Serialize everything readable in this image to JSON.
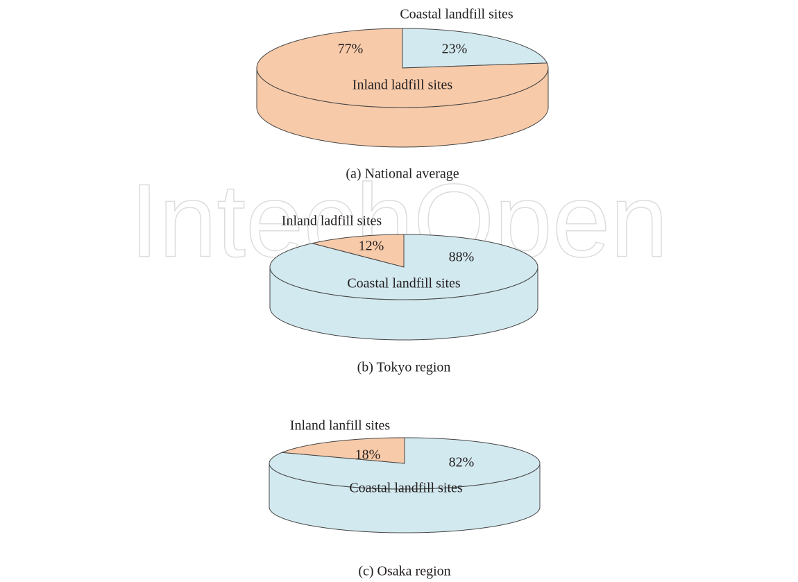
{
  "watermark": "IntechOpen",
  "chart_data": [
    {
      "type": "pie",
      "title": "(a) National average",
      "categories": [
        "Coastal landfill sites",
        "Inland ladfill sites"
      ],
      "values": [
        23,
        77
      ],
      "value_labels": [
        "23%",
        "77%"
      ],
      "colors": [
        "#d2e9ef",
        "#f7caa9"
      ]
    },
    {
      "type": "pie",
      "title": "(b) Tokyo region",
      "categories": [
        "Coastal landfill sites",
        "Inland ladfill sites"
      ],
      "values": [
        88,
        12
      ],
      "value_labels": [
        "88%",
        "12%"
      ],
      "colors": [
        "#d2e9ef",
        "#f7caa9"
      ]
    },
    {
      "type": "pie",
      "title": "(c) Osaka region",
      "categories": [
        "Coastal landfill sites",
        "Inland lanfill sites"
      ],
      "values": [
        82,
        18
      ],
      "value_labels": [
        "82%",
        "18%"
      ],
      "colors": [
        "#d2e9ef",
        "#f7caa9"
      ]
    }
  ]
}
